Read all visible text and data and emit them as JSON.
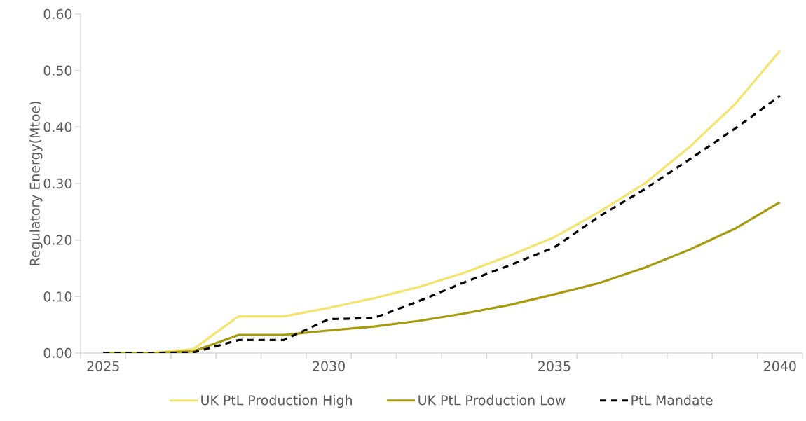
{
  "chart_data": {
    "type": "line",
    "ylabel": "Regulatory Energy(Mtoe)",
    "categories": [
      "2025",
      null,
      null,
      null,
      null,
      "2030",
      null,
      null,
      null,
      null,
      "2035",
      null,
      null,
      null,
      null,
      "2040"
    ],
    "series": [
      {
        "name": "UK PtL Production High",
        "color": "#f5e36b",
        "line_style": "solid",
        "values": [
          0,
          0,
          0.007,
          0.065,
          0.065,
          0.08,
          0.097,
          0.117,
          0.142,
          0.172,
          0.205,
          0.25,
          0.3,
          0.365,
          0.44,
          0.535
        ]
      },
      {
        "name": "UK PtL Production Low",
        "color": "#a89a0f",
        "line_style": "solid",
        "values": [
          0,
          0,
          0.003,
          0.032,
          0.032,
          0.04,
          0.047,
          0.057,
          0.07,
          0.085,
          0.104,
          0.124,
          0.151,
          0.183,
          0.22,
          0.267
        ]
      },
      {
        "name": "PtL Mandate",
        "color": "#000000",
        "line_style": "dashed",
        "values": [
          0,
          0,
          0.001,
          0.023,
          0.023,
          0.06,
          0.062,
          0.092,
          0.125,
          0.155,
          0.187,
          0.242,
          0.29,
          0.343,
          0.397,
          0.455
        ]
      }
    ],
    "ylim": [
      0,
      0.6
    ],
    "yticks": [
      {
        "value": 0,
        "label": "0.00"
      },
      {
        "value": 0.1,
        "label": "0.10"
      },
      {
        "value": 0.2,
        "label": "0.20"
      },
      {
        "value": 0.3,
        "label": "0.30"
      },
      {
        "value": 0.4,
        "label": "0.40"
      },
      {
        "value": 0.5,
        "label": "0.50"
      },
      {
        "value": 0.6,
        "label": "0.60"
      }
    ],
    "grid": false,
    "legend": "bottom",
    "marker": "none"
  }
}
